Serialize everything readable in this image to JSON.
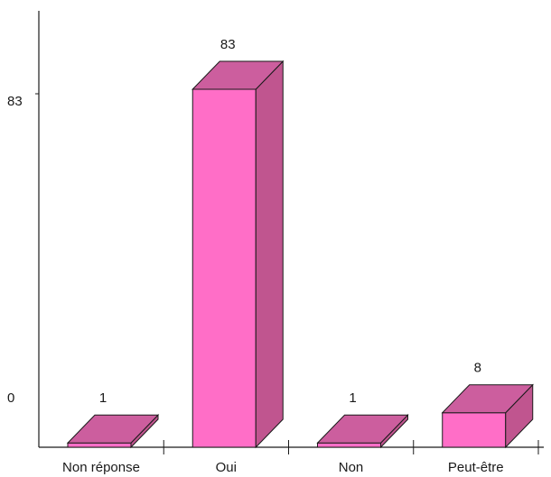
{
  "chart_data": {
    "type": "bar",
    "three_d": true,
    "categories": [
      "Non réponse",
      "Oui",
      "Non",
      "Peut-être"
    ],
    "values": [
      1,
      83,
      1,
      8
    ],
    "y_tick_labels": [
      "0",
      "83"
    ],
    "ylim": [
      0,
      83
    ],
    "title": "",
    "xlabel": "",
    "ylabel": "",
    "grid": false,
    "colors": {
      "front": "#ff6ec7",
      "top": "#cc5e9e",
      "side": "#c0558f",
      "edge": "#1a1a1a"
    }
  }
}
